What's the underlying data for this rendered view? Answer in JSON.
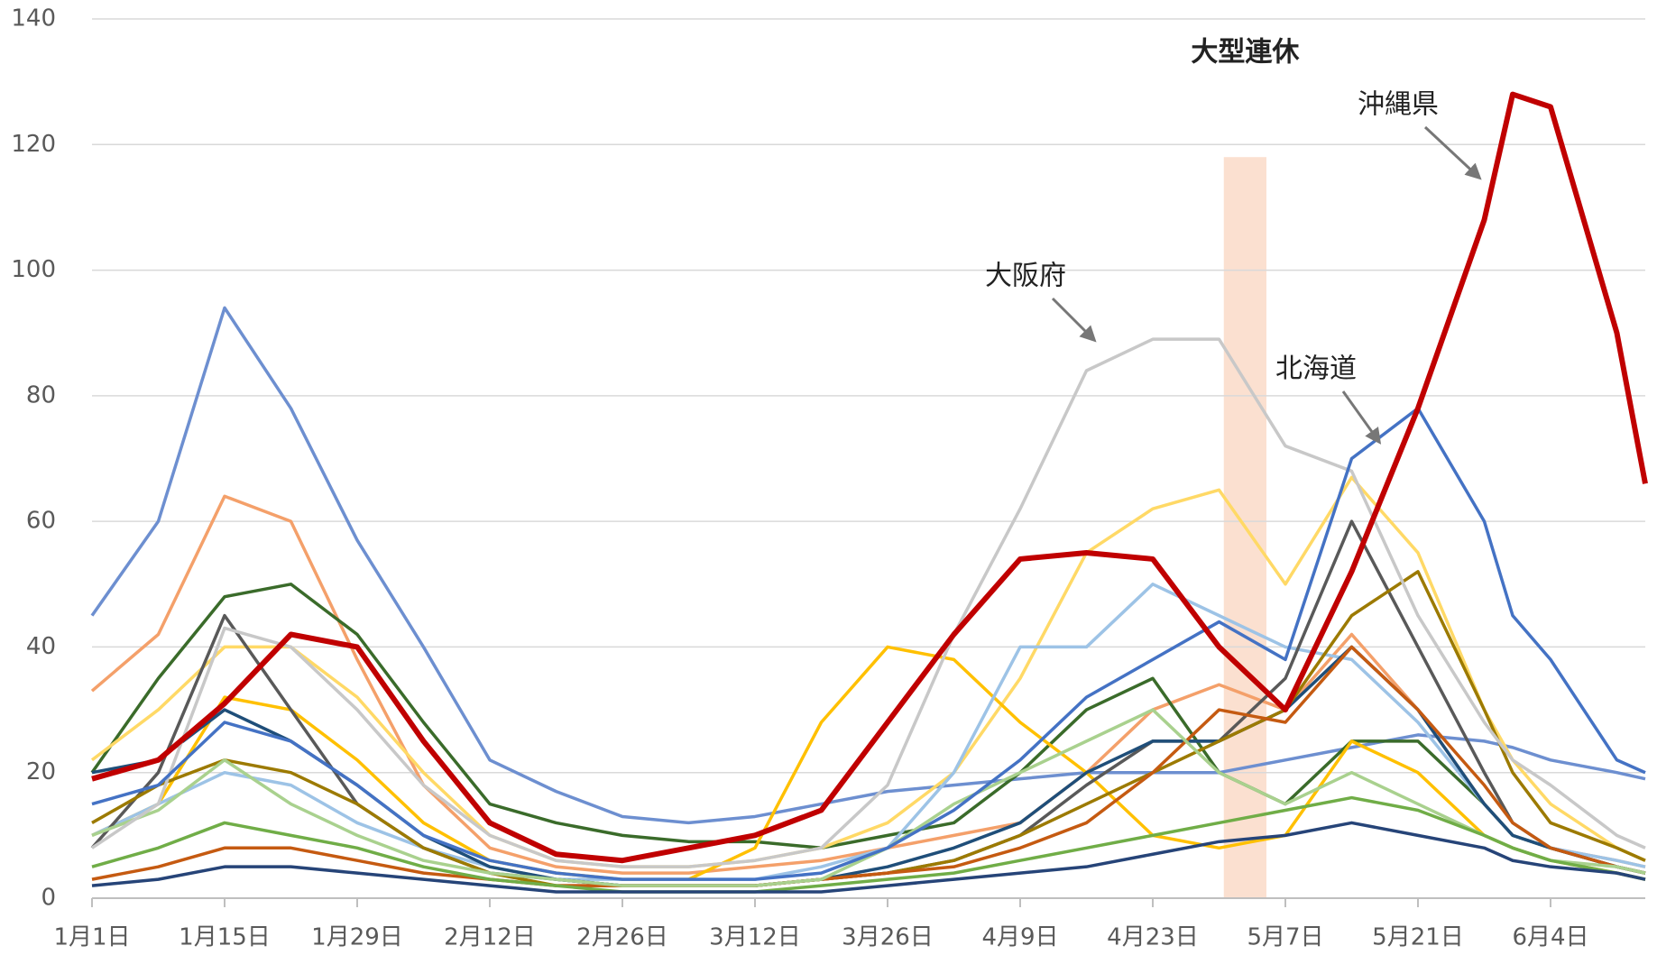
{
  "chart_data": {
    "type": "line",
    "x": [
      0,
      7,
      14,
      21,
      28,
      35,
      42,
      49,
      56,
      63,
      70,
      77,
      84,
      91,
      98,
      105,
      112,
      119,
      126,
      133,
      140,
      147,
      150,
      154,
      161,
      164
    ],
    "xlim": [
      0,
      164
    ],
    "xticks": [
      {
        "value": 0,
        "label": "1月1日"
      },
      {
        "value": 14,
        "label": "1月15日"
      },
      {
        "value": 28,
        "label": "1月29日"
      },
      {
        "value": 42,
        "label": "2月12日"
      },
      {
        "value": 56,
        "label": "2月26日"
      },
      {
        "value": 70,
        "label": "3月12日"
      },
      {
        "value": 84,
        "label": "3月26日"
      },
      {
        "value": 98,
        "label": "4月9日"
      },
      {
        "value": 112,
        "label": "4月23日"
      },
      {
        "value": 126,
        "label": "5月7日"
      },
      {
        "value": 140,
        "label": "5月21日"
      },
      {
        "value": 154,
        "label": "6月4日"
      }
    ],
    "ylim": [
      0,
      140
    ],
    "yticks": [
      0,
      20,
      40,
      60,
      80,
      100,
      120,
      140
    ],
    "grid": true,
    "highlight": {
      "label": "大型連休",
      "xlim": [
        119.5,
        124
      ],
      "color": "#fbe0d0"
    },
    "series": [
      {
        "color": "#6d8fd0",
        "values": [
          45,
          60,
          94,
          78,
          57,
          40,
          22,
          17,
          13,
          12,
          13,
          15,
          17,
          18,
          19,
          20,
          20,
          20,
          22,
          24,
          26,
          25,
          24,
          22,
          20,
          19
        ]
      },
      {
        "color": "#f4a06a",
        "values": [
          33,
          42,
          64,
          60,
          38,
          18,
          8,
          5,
          4,
          4,
          5,
          6,
          8,
          10,
          12,
          20,
          30,
          34,
          30,
          42,
          30,
          15,
          10,
          8,
          6,
          5
        ]
      },
      {
        "color": "#3a6b2a",
        "values": [
          20,
          35,
          48,
          50,
          42,
          28,
          15,
          12,
          10,
          9,
          9,
          8,
          10,
          12,
          20,
          30,
          35,
          20,
          15,
          25,
          25,
          15,
          10,
          8,
          5,
          4
        ]
      },
      {
        "color": "#ffd966",
        "values": [
          22,
          30,
          40,
          40,
          32,
          20,
          10,
          6,
          5,
          5,
          6,
          8,
          12,
          20,
          35,
          55,
          62,
          65,
          50,
          67,
          55,
          30,
          22,
          15,
          8,
          6
        ]
      },
      {
        "color": "#ffc000",
        "values": [
          10,
          15,
          32,
          30,
          22,
          12,
          6,
          4,
          3,
          3,
          8,
          28,
          40,
          38,
          28,
          20,
          10,
          8,
          10,
          25,
          20,
          10,
          8,
          6,
          4,
          3
        ]
      },
      {
        "color": "#9dc3e6",
        "values": [
          10,
          15,
          20,
          18,
          12,
          8,
          5,
          3,
          3,
          3,
          3,
          5,
          8,
          20,
          40,
          40,
          50,
          45,
          40,
          38,
          28,
          15,
          10,
          8,
          6,
          5
        ]
      },
      {
        "color": "#595959",
        "values": [
          8,
          20,
          45,
          30,
          15,
          8,
          4,
          3,
          2,
          2,
          2,
          3,
          4,
          6,
          10,
          18,
          25,
          25,
          35,
          60,
          40,
          20,
          12,
          8,
          5,
          4
        ]
      },
      {
        "color": "#1f4e79",
        "values": [
          20,
          22,
          30,
          25,
          18,
          10,
          5,
          3,
          2,
          2,
          2,
          3,
          5,
          8,
          12,
          20,
          25,
          25,
          30,
          40,
          30,
          15,
          10,
          8,
          5,
          4
        ]
      },
      {
        "color": "#9c7a00",
        "values": [
          12,
          18,
          22,
          20,
          15,
          8,
          4,
          2,
          2,
          2,
          2,
          3,
          4,
          6,
          10,
          15,
          20,
          25,
          30,
          45,
          52,
          30,
          20,
          12,
          8,
          6
        ]
      },
      {
        "color": "#c55a11",
        "values": [
          3,
          5,
          8,
          8,
          6,
          4,
          3,
          2,
          2,
          2,
          2,
          3,
          4,
          5,
          8,
          12,
          20,
          30,
          28,
          40,
          30,
          18,
          12,
          8,
          5,
          4
        ]
      },
      {
        "color": "#a9d18e",
        "values": [
          10,
          14,
          22,
          15,
          10,
          6,
          4,
          3,
          2,
          2,
          2,
          3,
          8,
          15,
          20,
          25,
          30,
          20,
          15,
          20,
          15,
          10,
          8,
          6,
          5,
          4
        ]
      },
      {
        "color": "#70ad47",
        "values": [
          5,
          8,
          12,
          10,
          8,
          5,
          3,
          2,
          1,
          1,
          1,
          2,
          3,
          4,
          6,
          8,
          10,
          12,
          14,
          16,
          14,
          10,
          8,
          6,
          4,
          3
        ]
      },
      {
        "color": "#264478",
        "values": [
          2,
          3,
          5,
          5,
          4,
          3,
          2,
          1,
          1,
          1,
          1,
          1,
          2,
          3,
          4,
          5,
          7,
          9,
          10,
          12,
          10,
          8,
          6,
          5,
          4,
          3
        ]
      },
      {
        "name": "大阪府",
        "color": "#c8c8c8",
        "values": [
          8,
          15,
          43,
          40,
          30,
          18,
          10,
          6,
          5,
          5,
          6,
          8,
          18,
          42,
          62,
          84,
          89,
          89,
          72,
          68,
          45,
          28,
          22,
          18,
          10,
          8
        ]
      },
      {
        "name": "北海道",
        "color": "#4472c4",
        "values": [
          15,
          18,
          28,
          25,
          18,
          10,
          6,
          4,
          3,
          3,
          3,
          4,
          8,
          14,
          22,
          32,
          38,
          44,
          38,
          70,
          78,
          60,
          45,
          38,
          22,
          20
        ]
      },
      {
        "name": "沖縄県",
        "color": "#c00000",
        "emphasis": true,
        "values": [
          19,
          22,
          31,
          42,
          40,
          25,
          12,
          7,
          6,
          8,
          10,
          14,
          28,
          42,
          54,
          55,
          54,
          40,
          30,
          52,
          78,
          108,
          128,
          126,
          90,
          66
        ]
      }
    ]
  }
}
